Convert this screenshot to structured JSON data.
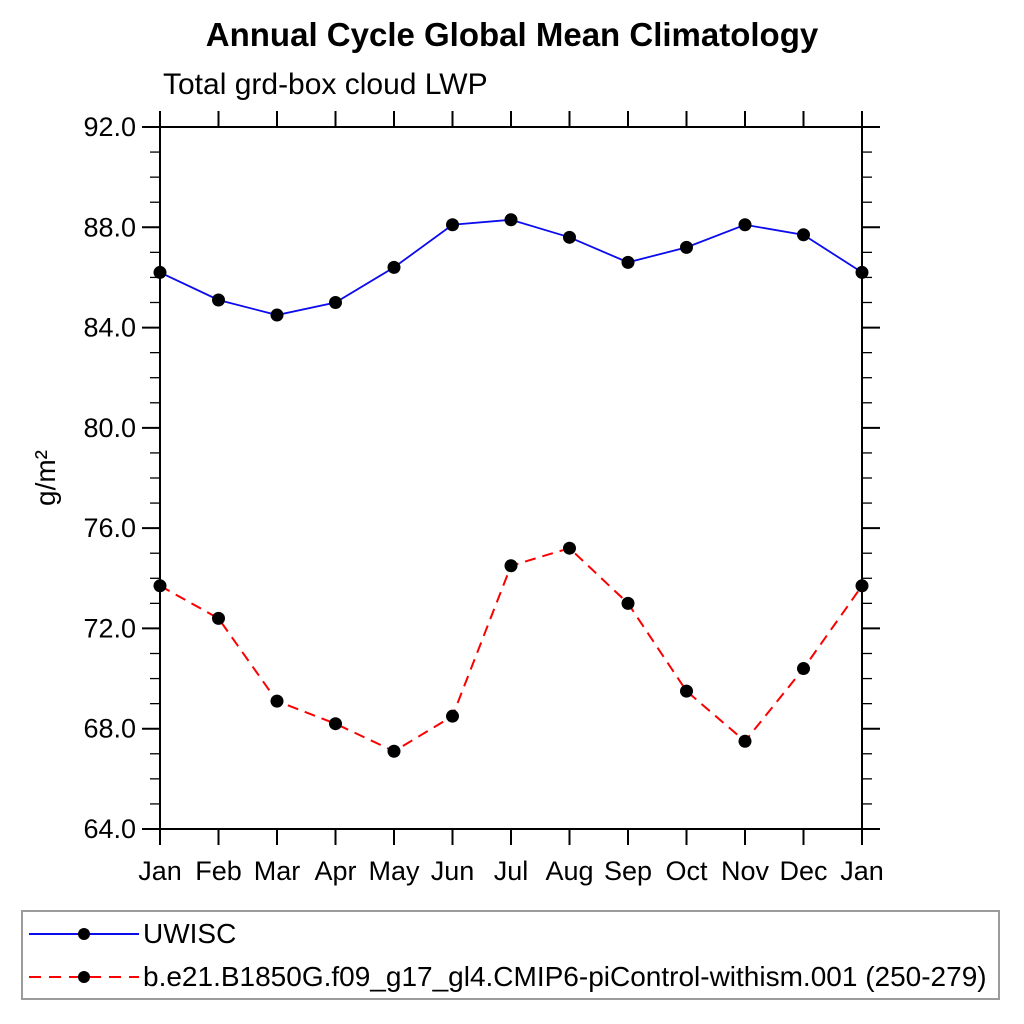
{
  "title": "Annual Cycle Global Mean Climatology",
  "subtitle": "Total grd-box cloud LWP",
  "chart_data": {
    "type": "line",
    "title": "Annual Cycle Global Mean Climatology",
    "subtitle": "Total grd-box cloud LWP",
    "ylabel": "g/m²",
    "xlabel": "",
    "x_categories": [
      "Jan",
      "Feb",
      "Mar",
      "Apr",
      "May",
      "Jun",
      "Jul",
      "Aug",
      "Sep",
      "Oct",
      "Nov",
      "Dec",
      "Jan"
    ],
    "ylim": [
      64.0,
      92.0
    ],
    "ytick_interval": 4.0,
    "yminor_tick_interval": 1.0,
    "ytick_labels": [
      "64.0",
      "68.0",
      "72.0",
      "76.0",
      "80.0",
      "84.0",
      "88.0",
      "92.0"
    ],
    "grid": "off",
    "legend_position": "bottom-box",
    "marker": "filled-circle",
    "marker_color": "#000000",
    "axis_color": "#000000",
    "legend_border_color": "#9b9b9b",
    "series": [
      {
        "name": "UWISC",
        "color": "#0b0bee",
        "line_style": "solid",
        "values": [
          86.2,
          85.1,
          84.5,
          85.0,
          86.4,
          88.1,
          88.3,
          87.6,
          86.6,
          87.2,
          88.1,
          87.7,
          86.2
        ]
      },
      {
        "name": "b.e21.B1850G.f09_g17_gl4.CMIP6-piControl-withism.001 (250-279)",
        "color": "#fb0000",
        "line_style": "dashed",
        "values": [
          73.7,
          72.4,
          69.1,
          68.2,
          67.1,
          68.5,
          74.5,
          75.2,
          73.0,
          69.5,
          67.5,
          70.4,
          73.7
        ]
      }
    ]
  }
}
